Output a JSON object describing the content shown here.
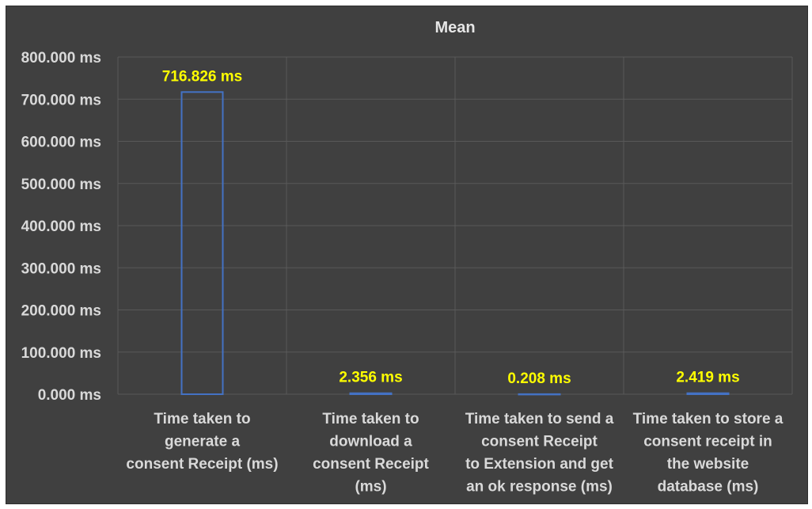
{
  "chart_data": {
    "type": "bar",
    "title": "Mean",
    "categories": [
      [
        "Time taken to",
        "generate a",
        "consent  Receipt (ms)"
      ],
      [
        "Time taken to",
        "download a",
        "consent  Receipt",
        "(ms)"
      ],
      [
        "Time taken to send a",
        "consent  Receipt",
        "to Extension and get",
        "an ok response (ms)"
      ],
      [
        "Time taken to store a",
        "consent receipt in",
        "the website",
        "database (ms)"
      ]
    ],
    "values": [
      716.826,
      2.356,
      0.208,
      2.419
    ],
    "data_labels": [
      "716.826 ms",
      "2.356 ms",
      "0.208 ms",
      "2.419 ms"
    ],
    "yticks": [
      "0.000 ms",
      "100.000 ms",
      "200.000 ms",
      "300.000 ms",
      "400.000 ms",
      "500.000 ms",
      "600.000 ms",
      "700.000 ms",
      "800.000 ms"
    ],
    "ylim": [
      0,
      800
    ],
    "xlabel": "",
    "ylabel": "",
    "grid": true,
    "legend": "none",
    "colors": {
      "background": "#404040",
      "bar_outline": "#4472c4",
      "data_label": "#ffff00",
      "text": "#d9d9d9",
      "grid": "#595959"
    }
  }
}
